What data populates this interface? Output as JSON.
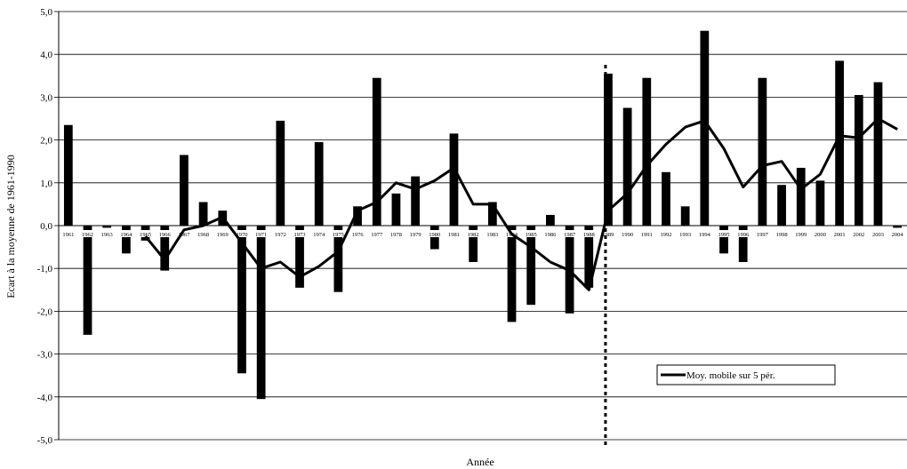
{
  "chart_data": {
    "type": "bar",
    "title": "",
    "xlabel": "Année",
    "ylabel": "Ecart à la moyenne de 1961-1990",
    "ylim": [
      -5,
      5
    ],
    "y_ticks": [
      "5,0",
      "4,0",
      "3,0",
      "2,0",
      "1,0",
      "0,0",
      "-1,0",
      "-2,0",
      "-3,0",
      "-4,0",
      "-5,0"
    ],
    "grid": true,
    "categories": [
      "1961",
      "1962",
      "1963",
      "1964",
      "1965",
      "1966",
      "1967",
      "1968",
      "1969",
      "1970",
      "1971",
      "1972",
      "1973",
      "1974",
      "1975",
      "1976",
      "1977",
      "1978",
      "1979",
      "1980",
      "1981",
      "1982",
      "1983",
      "1984",
      "1985",
      "1986",
      "1987",
      "1988",
      "1989",
      "1990",
      "1991",
      "1992",
      "1993",
      "1994",
      "1995",
      "1996",
      "1997",
      "1998",
      "1999",
      "2000",
      "2001",
      "2002",
      "2003",
      "2004"
    ],
    "values": [
      2.35,
      -2.55,
      -0.05,
      -0.65,
      -0.35,
      -1.05,
      1.65,
      0.55,
      0.35,
      -3.45,
      -4.05,
      2.45,
      -1.45,
      1.95,
      -1.55,
      0.45,
      3.45,
      0.75,
      1.15,
      -0.55,
      2.15,
      -0.85,
      0.55,
      -2.25,
      -1.85,
      0.25,
      -2.05,
      -1.45,
      3.55,
      2.75,
      3.45,
      1.25,
      0.45,
      4.55,
      -0.65,
      -0.85,
      3.45,
      0.95,
      1.35,
      1.05,
      3.85,
      3.05,
      3.35,
      -0.05
    ],
    "moving_average": {
      "name": "Moy. mobile sur 5 pér.",
      "start_index": 4,
      "values": [
        -0.25,
        -0.8,
        -0.1,
        0.0,
        0.2,
        -0.4,
        -1.0,
        -0.85,
        -1.2,
        -0.95,
        -0.6,
        0.35,
        0.55,
        1.0,
        0.85,
        1.05,
        1.35,
        0.5,
        0.5,
        -0.2,
        -0.5,
        -0.85,
        -1.05,
        -1.5,
        0.35,
        0.75,
        1.4,
        1.9,
        2.3,
        2.45,
        1.8,
        0.9,
        1.4,
        1.5,
        0.85,
        1.2,
        2.1,
        2.05,
        2.5,
        2.25
      ]
    },
    "dashed_marker_category": "1989",
    "legend": {
      "position": "bottom-right"
    }
  }
}
